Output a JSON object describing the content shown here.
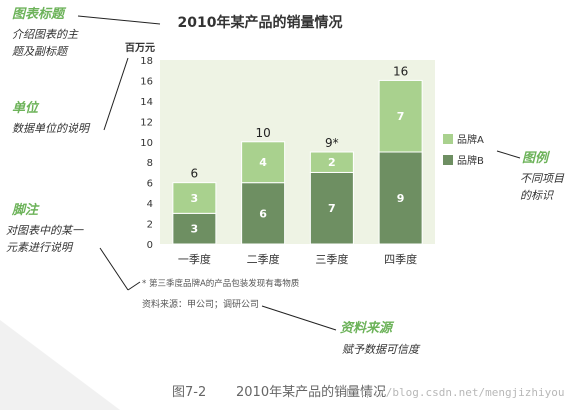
{
  "colors": {
    "series_a": "#a9d18e",
    "series_b": "#6e8f62",
    "plot_bg": "#eef3e4",
    "annotation_green": "#6db35a"
  },
  "annotations": {
    "title_note": {
      "heading": "图表标题",
      "lines": [
        "介绍图表的主",
        "题及副标题"
      ]
    },
    "unit_note": {
      "heading": "单位",
      "lines": [
        "数据单位的说明"
      ]
    },
    "footnote_note": {
      "heading": "脚注",
      "lines": [
        "对图表中的某一",
        "元素进行说明"
      ]
    },
    "legend_note": {
      "heading": "图例",
      "lines": [
        "不同项目",
        "的标识"
      ]
    },
    "source_note": {
      "heading": "资料来源",
      "lines": [
        "赋予数据可信度"
      ]
    }
  },
  "footnote": "* 第三季度品牌A的产品包装发现有毒物质",
  "source": "资料来源：甲公司；调研公司",
  "caption": {
    "figure_no": "图7-2",
    "title": "2010年某产品的销量情况"
  },
  "watermark": "http://blog.csdn.net/mengjizhiyou",
  "chart_data": {
    "type": "bar",
    "stacked": true,
    "title": "2010年某产品的销量情况",
    "ylabel": "百万元",
    "ylim": [
      0,
      18
    ],
    "yticks": [
      0,
      2,
      4,
      6,
      8,
      10,
      12,
      14,
      16,
      18
    ],
    "grid": false,
    "legend_position": "right",
    "categories": [
      "一季度",
      "二季度",
      "三季度",
      "四季度"
    ],
    "series": [
      {
        "name": "品牌B",
        "values": [
          3,
          6,
          7,
          9
        ]
      },
      {
        "name": "品牌A",
        "values": [
          3,
          4,
          2,
          7
        ]
      }
    ],
    "totals": [
      "6",
      "10",
      "9*",
      "16"
    ]
  }
}
